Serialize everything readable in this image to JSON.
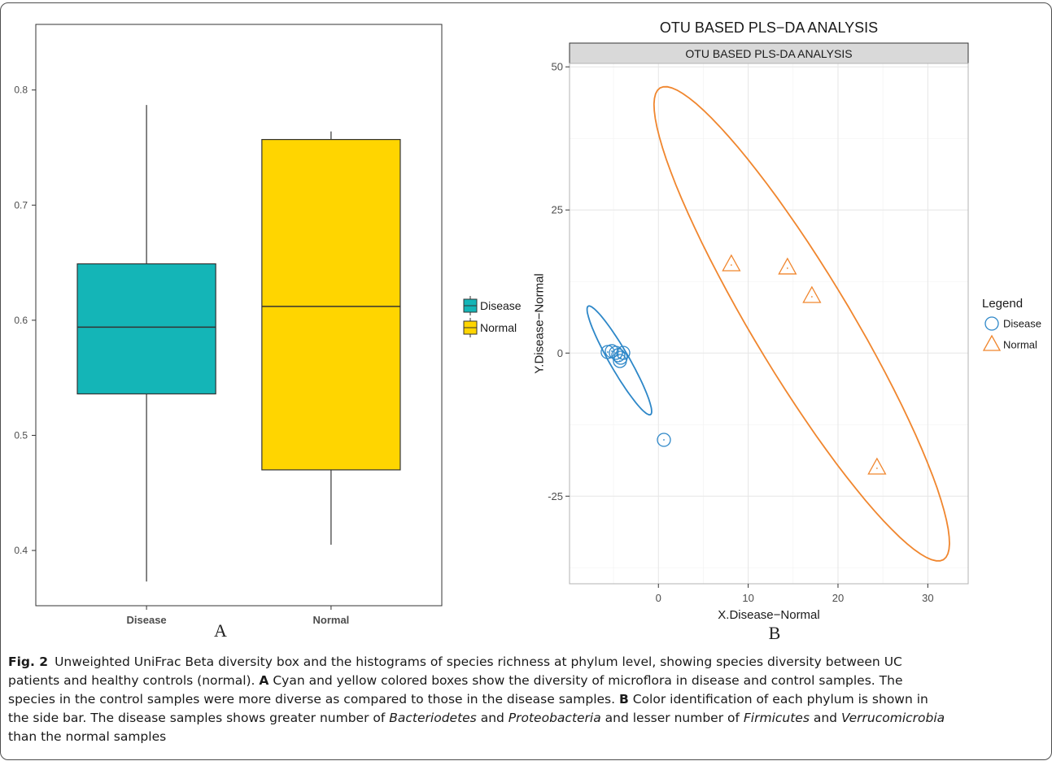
{
  "caption": {
    "label": "Fig. 2",
    "lines": [
      [
        {
          "text": "Unweighted UniFrac Beta diversity box and the histograms of species richness at phylum level, showing species diversity between UC"
        }
      ],
      [
        {
          "text": "patients and healthy controls (normal). "
        },
        {
          "text": "A",
          "bold": true
        },
        {
          "text": " Cyan and yellow colored boxes show the diversity of microflora in disease and control samples. The"
        }
      ],
      [
        {
          "text": "species in the control samples were more diverse as compared to those in the disease samples. "
        },
        {
          "text": "B",
          "bold": true
        },
        {
          "text": " Color identification of each phylum is shown in"
        }
      ],
      [
        {
          "text": "the side bar. The disease samples shows greater number of "
        },
        {
          "text": "Bacteriodetes",
          "italic": true
        },
        {
          "text": " and "
        },
        {
          "text": "Proteobacteria",
          "italic": true
        },
        {
          "text": " and lesser number of "
        },
        {
          "text": "Firmicutes",
          "italic": true
        },
        {
          "text": " and "
        },
        {
          "text": "Verrucomicrobia",
          "italic": true
        }
      ],
      [
        {
          "text": "than the normal samples"
        }
      ]
    ]
  },
  "chart_data": [
    {
      "type": "box",
      "panel_label": "A",
      "categories": [
        "Disease",
        "Normal"
      ],
      "series": [
        {
          "name": "Disease",
          "color": "#14B5B7",
          "min": 0.373,
          "q1": 0.536,
          "median": 0.594,
          "q3": 0.649,
          "max": 0.787
        },
        {
          "name": "Normal",
          "color": "#FFD500",
          "min": 0.405,
          "q1": 0.47,
          "median": 0.612,
          "q3": 0.757,
          "max": 0.764
        }
      ],
      "ylim": [
        0.352,
        0.857
      ],
      "yticks": [
        0.4,
        0.5,
        0.6,
        0.7,
        0.8
      ],
      "grid": false,
      "legend": {
        "position": "right"
      }
    },
    {
      "type": "scatter",
      "panel_label": "B",
      "title": "OTU BASED PLS−DA ANALYSIS",
      "strip_label": "OTU BASED PLS-DA ANALYSIS",
      "xlabel": "X.Disease−Normal",
      "ylabel": "Y.Disease−Normal",
      "xlim": [
        -9.9,
        34.5
      ],
      "ylim": [
        -40.3,
        50.6
      ],
      "xticks": [
        0,
        10,
        20,
        30
      ],
      "yticks": [
        -25,
        0,
        25,
        50
      ],
      "grid": true,
      "legend": {
        "title": "Legend",
        "position": "right"
      },
      "series": [
        {
          "name": "Disease",
          "marker": "circle",
          "color": "#2D87C8",
          "points": [
            [
              -5.65,
              0.18
            ],
            [
              -5.19,
              0.33
            ],
            [
              -4.74,
              0.04
            ],
            [
              -4.47,
              -0.38
            ],
            [
              -4.2,
              -0.81
            ],
            [
              -3.92,
              0.04
            ],
            [
              -4.29,
              -1.38
            ],
            [
              0.61,
              -15.16
            ]
          ],
          "ellipse": {
            "center": [
              -4.35,
              -1.28
            ],
            "axis_major": [
              3.47,
              -9.47
            ],
            "axis_minor": [
              0.94,
              0.85
            ]
          }
        },
        {
          "name": "Normal",
          "marker": "triangle",
          "color": "#F0862E",
          "points": [
            [
              8.12,
              15.38
            ],
            [
              14.37,
              14.82
            ],
            [
              17.09,
              9.84
            ],
            [
              24.34,
              -20.13
            ]
          ],
          "ellipse": {
            "center": [
              15.96,
              5.11
            ],
            "axis_major": [
              15.78,
              -41.2
            ],
            "axis_minor": [
              4.66,
              4.39
            ]
          }
        }
      ]
    }
  ]
}
